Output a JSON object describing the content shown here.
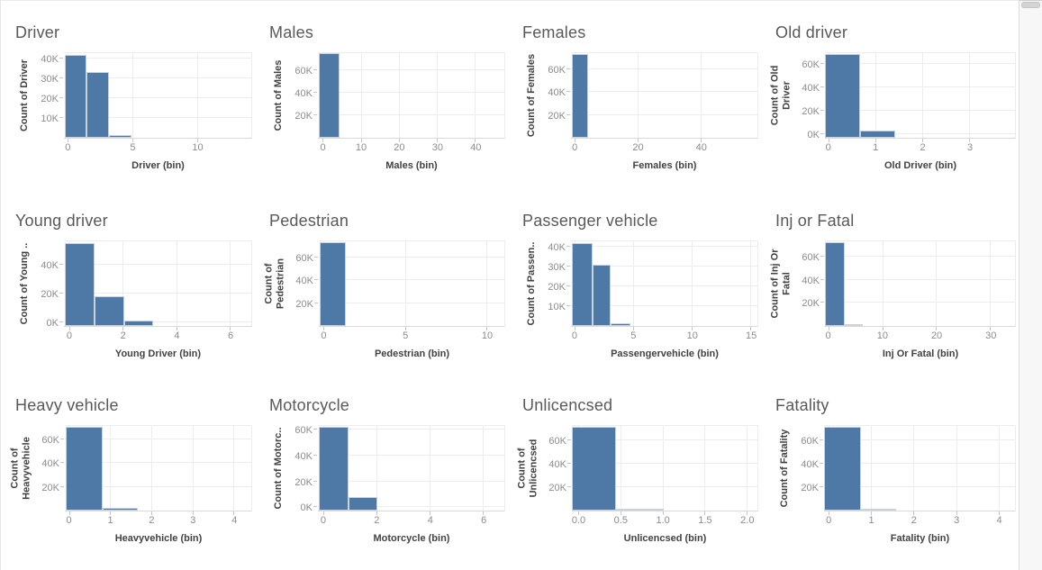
{
  "page": {
    "background": "#ffffff"
  },
  "style": {
    "colors": {
      "bar": "#4e79a7",
      "grid": "#ededed",
      "title": "#595959",
      "axis_title": "#424242",
      "tick_label": "#8c8c8c"
    }
  },
  "scrollbar": {
    "track_color": "#f7f7f7",
    "thumb_color": "#d4d4d4"
  },
  "chart_data": [
    {
      "type": "bar",
      "title": "Driver",
      "xlabel": "Driver (bin)",
      "ylabel_lines": [
        "Count of Driver"
      ],
      "x_domain": [
        -0.3,
        14.2
      ],
      "y_domain": [
        0,
        43500
      ],
      "x_ticks": [
        {
          "v": 0,
          "label": "0"
        },
        {
          "v": 5,
          "label": "5"
        },
        {
          "v": 10,
          "label": "10"
        }
      ],
      "y_ticks": [
        {
          "v": 10000,
          "label": "10K"
        },
        {
          "v": 20000,
          "label": "20K"
        },
        {
          "v": 30000,
          "label": "30K"
        },
        {
          "v": 40000,
          "label": "40K"
        }
      ],
      "bars": [
        {
          "x0": -0.23,
          "x1": 1.42,
          "count": 41500
        },
        {
          "x0": 1.42,
          "x1": 3.17,
          "count": 33000
        },
        {
          "x0": 3.17,
          "x1": 4.9,
          "count": 1500
        }
      ]
    },
    {
      "type": "bar",
      "title": "Males",
      "xlabel": "Males (bin)",
      "ylabel_lines": [
        "Count of Males"
      ],
      "x_domain": [
        -1.3,
        47.7
      ],
      "y_domain": [
        0,
        77000
      ],
      "x_ticks": [
        {
          "v": 0,
          "label": "0"
        },
        {
          "v": 10,
          "label": "10"
        },
        {
          "v": 20,
          "label": "20"
        },
        {
          "v": 30,
          "label": "30"
        },
        {
          "v": 40,
          "label": "40"
        }
      ],
      "y_ticks": [
        {
          "v": 20000,
          "label": "20K"
        },
        {
          "v": 40000,
          "label": "40K"
        },
        {
          "v": 60000,
          "label": "60K"
        }
      ],
      "bars": [
        {
          "x0": -1.1,
          "x1": 4.45,
          "count": 75500
        }
      ]
    },
    {
      "type": "bar",
      "title": "Females",
      "xlabel": "Females (bin)",
      "ylabel_lines": [
        "Count of Females"
      ],
      "x_domain": [
        -1.2,
        58
      ],
      "y_domain": [
        0,
        76000
      ],
      "x_ticks": [
        {
          "v": 0,
          "label": "0"
        },
        {
          "v": 20,
          "label": "20"
        },
        {
          "v": 40,
          "label": "40"
        }
      ],
      "y_ticks": [
        {
          "v": 20000,
          "label": "20K"
        },
        {
          "v": 40000,
          "label": "40K"
        },
        {
          "v": 60000,
          "label": "60K"
        }
      ],
      "bars": [
        {
          "x0": -1.05,
          "x1": 4.35,
          "count": 74000
        }
      ]
    },
    {
      "type": "bar",
      "title": "Old driver",
      "xlabel": "Old Driver (bin)",
      "ylabel_lines": [
        "Count of Old",
        "Driver"
      ],
      "x_domain": [
        -0.07,
        3.97
      ],
      "y_domain": [
        -3000,
        71000
      ],
      "x_ticks": [
        {
          "v": 0,
          "label": "0"
        },
        {
          "v": 1,
          "label": "1"
        },
        {
          "v": 2,
          "label": "2"
        },
        {
          "v": 3,
          "label": "3"
        }
      ],
      "y_ticks": [
        {
          "v": 0,
          "label": "0K"
        },
        {
          "v": 20000,
          "label": "20K"
        },
        {
          "v": 40000,
          "label": "40K"
        },
        {
          "v": 60000,
          "label": "60K"
        }
      ],
      "bars": [
        {
          "x0": -0.07,
          "x1": 0.67,
          "count": 69000
        },
        {
          "x0": 0.67,
          "x1": 1.42,
          "count": 3500
        }
      ]
    },
    {
      "type": "bar",
      "title": "Young driver",
      "xlabel": "Young Driver (bin)",
      "ylabel_lines": [
        "Count of Young .."
      ],
      "x_domain": [
        -0.2,
        6.8
      ],
      "y_domain": [
        -2500,
        57500
      ],
      "x_ticks": [
        {
          "v": 0,
          "label": "0"
        },
        {
          "v": 2,
          "label": "2"
        },
        {
          "v": 4,
          "label": "4"
        },
        {
          "v": 6,
          "label": "6"
        }
      ],
      "y_ticks": [
        {
          "v": 0,
          "label": "0K"
        },
        {
          "v": 20000,
          "label": "20K"
        },
        {
          "v": 40000,
          "label": "40K"
        }
      ],
      "bars": [
        {
          "x0": -0.17,
          "x1": 0.96,
          "count": 55000
        },
        {
          "x0": 0.96,
          "x1": 2.04,
          "count": 18000
        },
        {
          "x0": 2.04,
          "x1": 3.13,
          "count": 1500
        }
      ]
    },
    {
      "type": "bar",
      "title": "Pedestrian",
      "xlabel": "Pedestrian (bin)",
      "ylabel_lines": [
        "Count of",
        "Pedestrian"
      ],
      "x_domain": [
        -0.3,
        11.1
      ],
      "y_domain": [
        0,
        75500
      ],
      "x_ticks": [
        {
          "v": 0,
          "label": "0"
        },
        {
          "v": 5,
          "label": "5"
        },
        {
          "v": 10,
          "label": "10"
        }
      ],
      "y_ticks": [
        {
          "v": 20000,
          "label": "20K"
        },
        {
          "v": 40000,
          "label": "40K"
        },
        {
          "v": 60000,
          "label": "60K"
        }
      ],
      "bars": [
        {
          "x0": -0.26,
          "x1": 1.36,
          "count": 73500
        }
      ]
    },
    {
      "type": "bar",
      "title": "Passenger vehicle",
      "xlabel": "Passengervehicle (bin)",
      "ylabel_lines": [
        "Count of Passen.."
      ],
      "x_domain": [
        -0.3,
        15.6
      ],
      "y_domain": [
        0,
        43500
      ],
      "x_ticks": [
        {
          "v": 0,
          "label": "0"
        },
        {
          "v": 5,
          "label": "5"
        },
        {
          "v": 10,
          "label": "10"
        },
        {
          "v": 15,
          "label": "15"
        }
      ],
      "y_ticks": [
        {
          "v": 10000,
          "label": "10K"
        },
        {
          "v": 20000,
          "label": "20K"
        },
        {
          "v": 30000,
          "label": "30K"
        },
        {
          "v": 40000,
          "label": "40K"
        }
      ],
      "bars": [
        {
          "x0": -0.25,
          "x1": 1.53,
          "count": 41500
        },
        {
          "x0": 1.53,
          "x1": 3.1,
          "count": 31000
        },
        {
          "x0": 3.1,
          "x1": 4.77,
          "count": 1500
        }
      ]
    },
    {
      "type": "bar",
      "title": "Inj or Fatal",
      "xlabel": "Inj Or Fatal (bin)",
      "ylabel_lines": [
        "Count of Inj Or",
        "Fatal"
      ],
      "x_domain": [
        -0.6,
        34.6
      ],
      "y_domain": [
        0,
        75000
      ],
      "x_ticks": [
        {
          "v": 0,
          "label": "0"
        },
        {
          "v": 10,
          "label": "10"
        },
        {
          "v": 20,
          "label": "20"
        },
        {
          "v": 30,
          "label": "30"
        }
      ],
      "y_ticks": [
        {
          "v": 20000,
          "label": "20K"
        },
        {
          "v": 40000,
          "label": "40K"
        },
        {
          "v": 60000,
          "label": "60K"
        }
      ],
      "bars": [
        {
          "x0": -0.55,
          "x1": 3.0,
          "count": 73000
        },
        {
          "x0": 3.0,
          "x1": 6.45,
          "count": 1200
        }
      ]
    },
    {
      "type": "bar",
      "title": "Heavy vehicle",
      "xlabel": "Heavyvehicle (bin)",
      "ylabel_lines": [
        "Count of",
        "Heavyvehicle"
      ],
      "x_domain": [
        -0.1,
        4.43
      ],
      "y_domain": [
        0,
        72500
      ],
      "x_ticks": [
        {
          "v": 0,
          "label": "0"
        },
        {
          "v": 1,
          "label": "1"
        },
        {
          "v": 2,
          "label": "2"
        },
        {
          "v": 3,
          "label": "3"
        },
        {
          "v": 4,
          "label": "4"
        }
      ],
      "y_ticks": [
        {
          "v": 20000,
          "label": "20K"
        },
        {
          "v": 40000,
          "label": "40K"
        },
        {
          "v": 60000,
          "label": "60K"
        }
      ],
      "bars": [
        {
          "x0": -0.08,
          "x1": 0.81,
          "count": 70000
        },
        {
          "x0": 0.81,
          "x1": 1.68,
          "count": 2200
        }
      ]
    },
    {
      "type": "bar",
      "title": "Motorcycle",
      "xlabel": "Motorcycle (bin)",
      "ylabel_lines": [
        "Count of Motorc.."
      ],
      "x_domain": [
        -0.2,
        6.8
      ],
      "y_domain": [
        -2500,
        64500
      ],
      "x_ticks": [
        {
          "v": 0,
          "label": "0"
        },
        {
          "v": 2,
          "label": "2"
        },
        {
          "v": 4,
          "label": "4"
        },
        {
          "v": 6,
          "label": "6"
        }
      ],
      "y_ticks": [
        {
          "v": 0,
          "label": "0K"
        },
        {
          "v": 20000,
          "label": "20K"
        },
        {
          "v": 40000,
          "label": "40K"
        },
        {
          "v": 60000,
          "label": "60K"
        }
      ],
      "bars": [
        {
          "x0": -0.17,
          "x1": 0.96,
          "count": 62500
        },
        {
          "x0": 0.96,
          "x1": 2.04,
          "count": 8000
        }
      ]
    },
    {
      "type": "bar",
      "title": "Unlicencsed",
      "xlabel": "Unlicencsed (bin)",
      "ylabel_lines": [
        "Count of",
        "Unlicencsed"
      ],
      "x_domain": [
        -0.08,
        2.13
      ],
      "y_domain": [
        0,
        74000
      ],
      "x_ticks": [
        {
          "v": 0,
          "label": "0.0"
        },
        {
          "v": 0.5,
          "label": "0.5"
        },
        {
          "v": 1,
          "label": "1.0"
        },
        {
          "v": 1.5,
          "label": "1.5"
        },
        {
          "v": 2,
          "label": "2.0"
        }
      ],
      "y_ticks": [
        {
          "v": 20000,
          "label": "20K"
        },
        {
          "v": 40000,
          "label": "40K"
        },
        {
          "v": 60000,
          "label": "60K"
        }
      ],
      "bars": [
        {
          "x0": -0.077,
          "x1": 0.445,
          "count": 72000
        },
        {
          "x0": 0.445,
          "x1": 1.015,
          "count": 1500
        }
      ]
    },
    {
      "type": "bar",
      "title": "Fatality",
      "xlabel": "Fatality (bin)",
      "ylabel_lines": [
        "Count of Fatality"
      ],
      "x_domain": [
        -0.11,
        4.39
      ],
      "y_domain": [
        0,
        74000
      ],
      "x_ticks": [
        {
          "v": 0,
          "label": "0"
        },
        {
          "v": 1,
          "label": "1"
        },
        {
          "v": 2,
          "label": "2"
        },
        {
          "v": 3,
          "label": "3"
        },
        {
          "v": 4,
          "label": "4"
        }
      ],
      "y_ticks": [
        {
          "v": 20000,
          "label": "20K"
        },
        {
          "v": 40000,
          "label": "40K"
        },
        {
          "v": 60000,
          "label": "60K"
        }
      ],
      "bars": [
        {
          "x0": -0.11,
          "x1": 0.76,
          "count": 72000
        },
        {
          "x0": 0.76,
          "x1": 1.58,
          "count": 1200
        }
      ]
    }
  ]
}
